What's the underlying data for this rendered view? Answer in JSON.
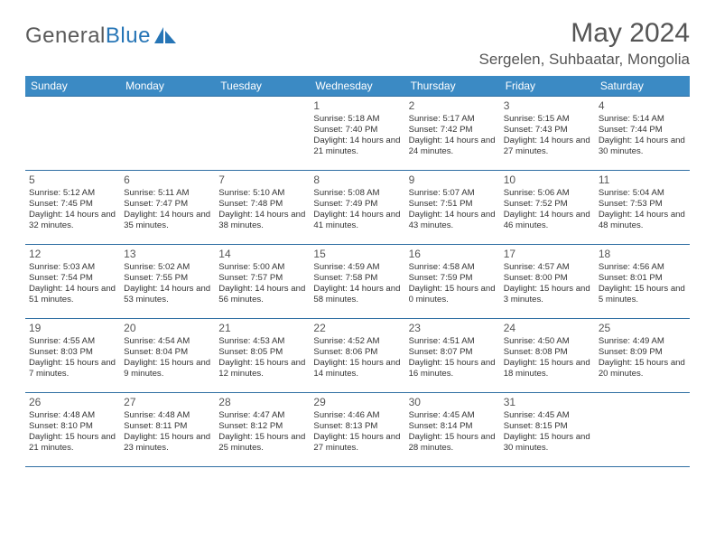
{
  "brand": {
    "part1": "General",
    "part2": "Blue"
  },
  "title": "May 2024",
  "location": "Sergelen, Suhbaatar, Mongolia",
  "colors": {
    "header_bg": "#3b8ac4",
    "header_text": "#ffffff",
    "rule": "#2f6fa3",
    "text": "#333333",
    "title_text": "#555555",
    "logo_gray": "#5a5a5a",
    "logo_blue": "#2675b6"
  },
  "dow": [
    "Sunday",
    "Monday",
    "Tuesday",
    "Wednesday",
    "Thursday",
    "Friday",
    "Saturday"
  ],
  "weeks": [
    [
      null,
      null,
      null,
      {
        "n": "1",
        "sr": "5:18 AM",
        "ss": "7:40 PM",
        "dl": "14 hours and 21 minutes."
      },
      {
        "n": "2",
        "sr": "5:17 AM",
        "ss": "7:42 PM",
        "dl": "14 hours and 24 minutes."
      },
      {
        "n": "3",
        "sr": "5:15 AM",
        "ss": "7:43 PM",
        "dl": "14 hours and 27 minutes."
      },
      {
        "n": "4",
        "sr": "5:14 AM",
        "ss": "7:44 PM",
        "dl": "14 hours and 30 minutes."
      }
    ],
    [
      {
        "n": "5",
        "sr": "5:12 AM",
        "ss": "7:45 PM",
        "dl": "14 hours and 32 minutes."
      },
      {
        "n": "6",
        "sr": "5:11 AM",
        "ss": "7:47 PM",
        "dl": "14 hours and 35 minutes."
      },
      {
        "n": "7",
        "sr": "5:10 AM",
        "ss": "7:48 PM",
        "dl": "14 hours and 38 minutes."
      },
      {
        "n": "8",
        "sr": "5:08 AM",
        "ss": "7:49 PM",
        "dl": "14 hours and 41 minutes."
      },
      {
        "n": "9",
        "sr": "5:07 AM",
        "ss": "7:51 PM",
        "dl": "14 hours and 43 minutes."
      },
      {
        "n": "10",
        "sr": "5:06 AM",
        "ss": "7:52 PM",
        "dl": "14 hours and 46 minutes."
      },
      {
        "n": "11",
        "sr": "5:04 AM",
        "ss": "7:53 PM",
        "dl": "14 hours and 48 minutes."
      }
    ],
    [
      {
        "n": "12",
        "sr": "5:03 AM",
        "ss": "7:54 PM",
        "dl": "14 hours and 51 minutes."
      },
      {
        "n": "13",
        "sr": "5:02 AM",
        "ss": "7:55 PM",
        "dl": "14 hours and 53 minutes."
      },
      {
        "n": "14",
        "sr": "5:00 AM",
        "ss": "7:57 PM",
        "dl": "14 hours and 56 minutes."
      },
      {
        "n": "15",
        "sr": "4:59 AM",
        "ss": "7:58 PM",
        "dl": "14 hours and 58 minutes."
      },
      {
        "n": "16",
        "sr": "4:58 AM",
        "ss": "7:59 PM",
        "dl": "15 hours and 0 minutes."
      },
      {
        "n": "17",
        "sr": "4:57 AM",
        "ss": "8:00 PM",
        "dl": "15 hours and 3 minutes."
      },
      {
        "n": "18",
        "sr": "4:56 AM",
        "ss": "8:01 PM",
        "dl": "15 hours and 5 minutes."
      }
    ],
    [
      {
        "n": "19",
        "sr": "4:55 AM",
        "ss": "8:03 PM",
        "dl": "15 hours and 7 minutes."
      },
      {
        "n": "20",
        "sr": "4:54 AM",
        "ss": "8:04 PM",
        "dl": "15 hours and 9 minutes."
      },
      {
        "n": "21",
        "sr": "4:53 AM",
        "ss": "8:05 PM",
        "dl": "15 hours and 12 minutes."
      },
      {
        "n": "22",
        "sr": "4:52 AM",
        "ss": "8:06 PM",
        "dl": "15 hours and 14 minutes."
      },
      {
        "n": "23",
        "sr": "4:51 AM",
        "ss": "8:07 PM",
        "dl": "15 hours and 16 minutes."
      },
      {
        "n": "24",
        "sr": "4:50 AM",
        "ss": "8:08 PM",
        "dl": "15 hours and 18 minutes."
      },
      {
        "n": "25",
        "sr": "4:49 AM",
        "ss": "8:09 PM",
        "dl": "15 hours and 20 minutes."
      }
    ],
    [
      {
        "n": "26",
        "sr": "4:48 AM",
        "ss": "8:10 PM",
        "dl": "15 hours and 21 minutes."
      },
      {
        "n": "27",
        "sr": "4:48 AM",
        "ss": "8:11 PM",
        "dl": "15 hours and 23 minutes."
      },
      {
        "n": "28",
        "sr": "4:47 AM",
        "ss": "8:12 PM",
        "dl": "15 hours and 25 minutes."
      },
      {
        "n": "29",
        "sr": "4:46 AM",
        "ss": "8:13 PM",
        "dl": "15 hours and 27 minutes."
      },
      {
        "n": "30",
        "sr": "4:45 AM",
        "ss": "8:14 PM",
        "dl": "15 hours and 28 minutes."
      },
      {
        "n": "31",
        "sr": "4:45 AM",
        "ss": "8:15 PM",
        "dl": "15 hours and 30 minutes."
      },
      null
    ]
  ],
  "labels": {
    "sunrise": "Sunrise:",
    "sunset": "Sunset:",
    "daylight": "Daylight:"
  }
}
